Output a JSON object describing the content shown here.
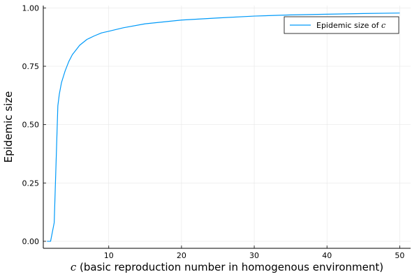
{
  "chart_data": {
    "type": "line",
    "title": "",
    "xlabel": {
      "var": "c",
      "text": " (basic reproduction number in homogenous environment)"
    },
    "ylabel": "Epidemic size",
    "xlim": [
      1.0,
      51.5
    ],
    "ylim": [
      -0.03,
      1.01
    ],
    "xticks": [
      10,
      20,
      30,
      40,
      50
    ],
    "xtick_labels": [
      "10",
      "20",
      "30",
      "40",
      "50"
    ],
    "yticks": [
      0.0,
      0.25,
      0.5,
      0.75,
      1.0
    ],
    "ytick_labels": [
      "0.00",
      "0.25",
      "0.50",
      "0.75",
      "1.00"
    ],
    "grid": true,
    "legend_position": "top-right",
    "colors": {
      "series": "#009af9",
      "grid": "#e6e6e6",
      "axis": "#000000"
    },
    "series": [
      {
        "name": "Epidemic size of",
        "name_var": "c",
        "x": [
          1.5,
          2.0,
          2.5,
          3.0,
          3.2,
          3.5,
          3.8,
          4.0,
          4.5,
          5.0,
          5.5,
          6.0,
          7.0,
          8.0,
          9.0,
          10.0,
          12.0,
          15.0,
          20.0,
          25.0,
          30.0,
          35.0,
          40.0,
          45.0,
          50.0
        ],
        "y": [
          0.0,
          0.0,
          0.08,
          0.58,
          0.63,
          0.68,
          0.71,
          0.73,
          0.77,
          0.8,
          0.82,
          0.84,
          0.865,
          0.88,
          0.893,
          0.9,
          0.915,
          0.932,
          0.948,
          0.957,
          0.965,
          0.97,
          0.973,
          0.976,
          0.978
        ]
      }
    ]
  }
}
